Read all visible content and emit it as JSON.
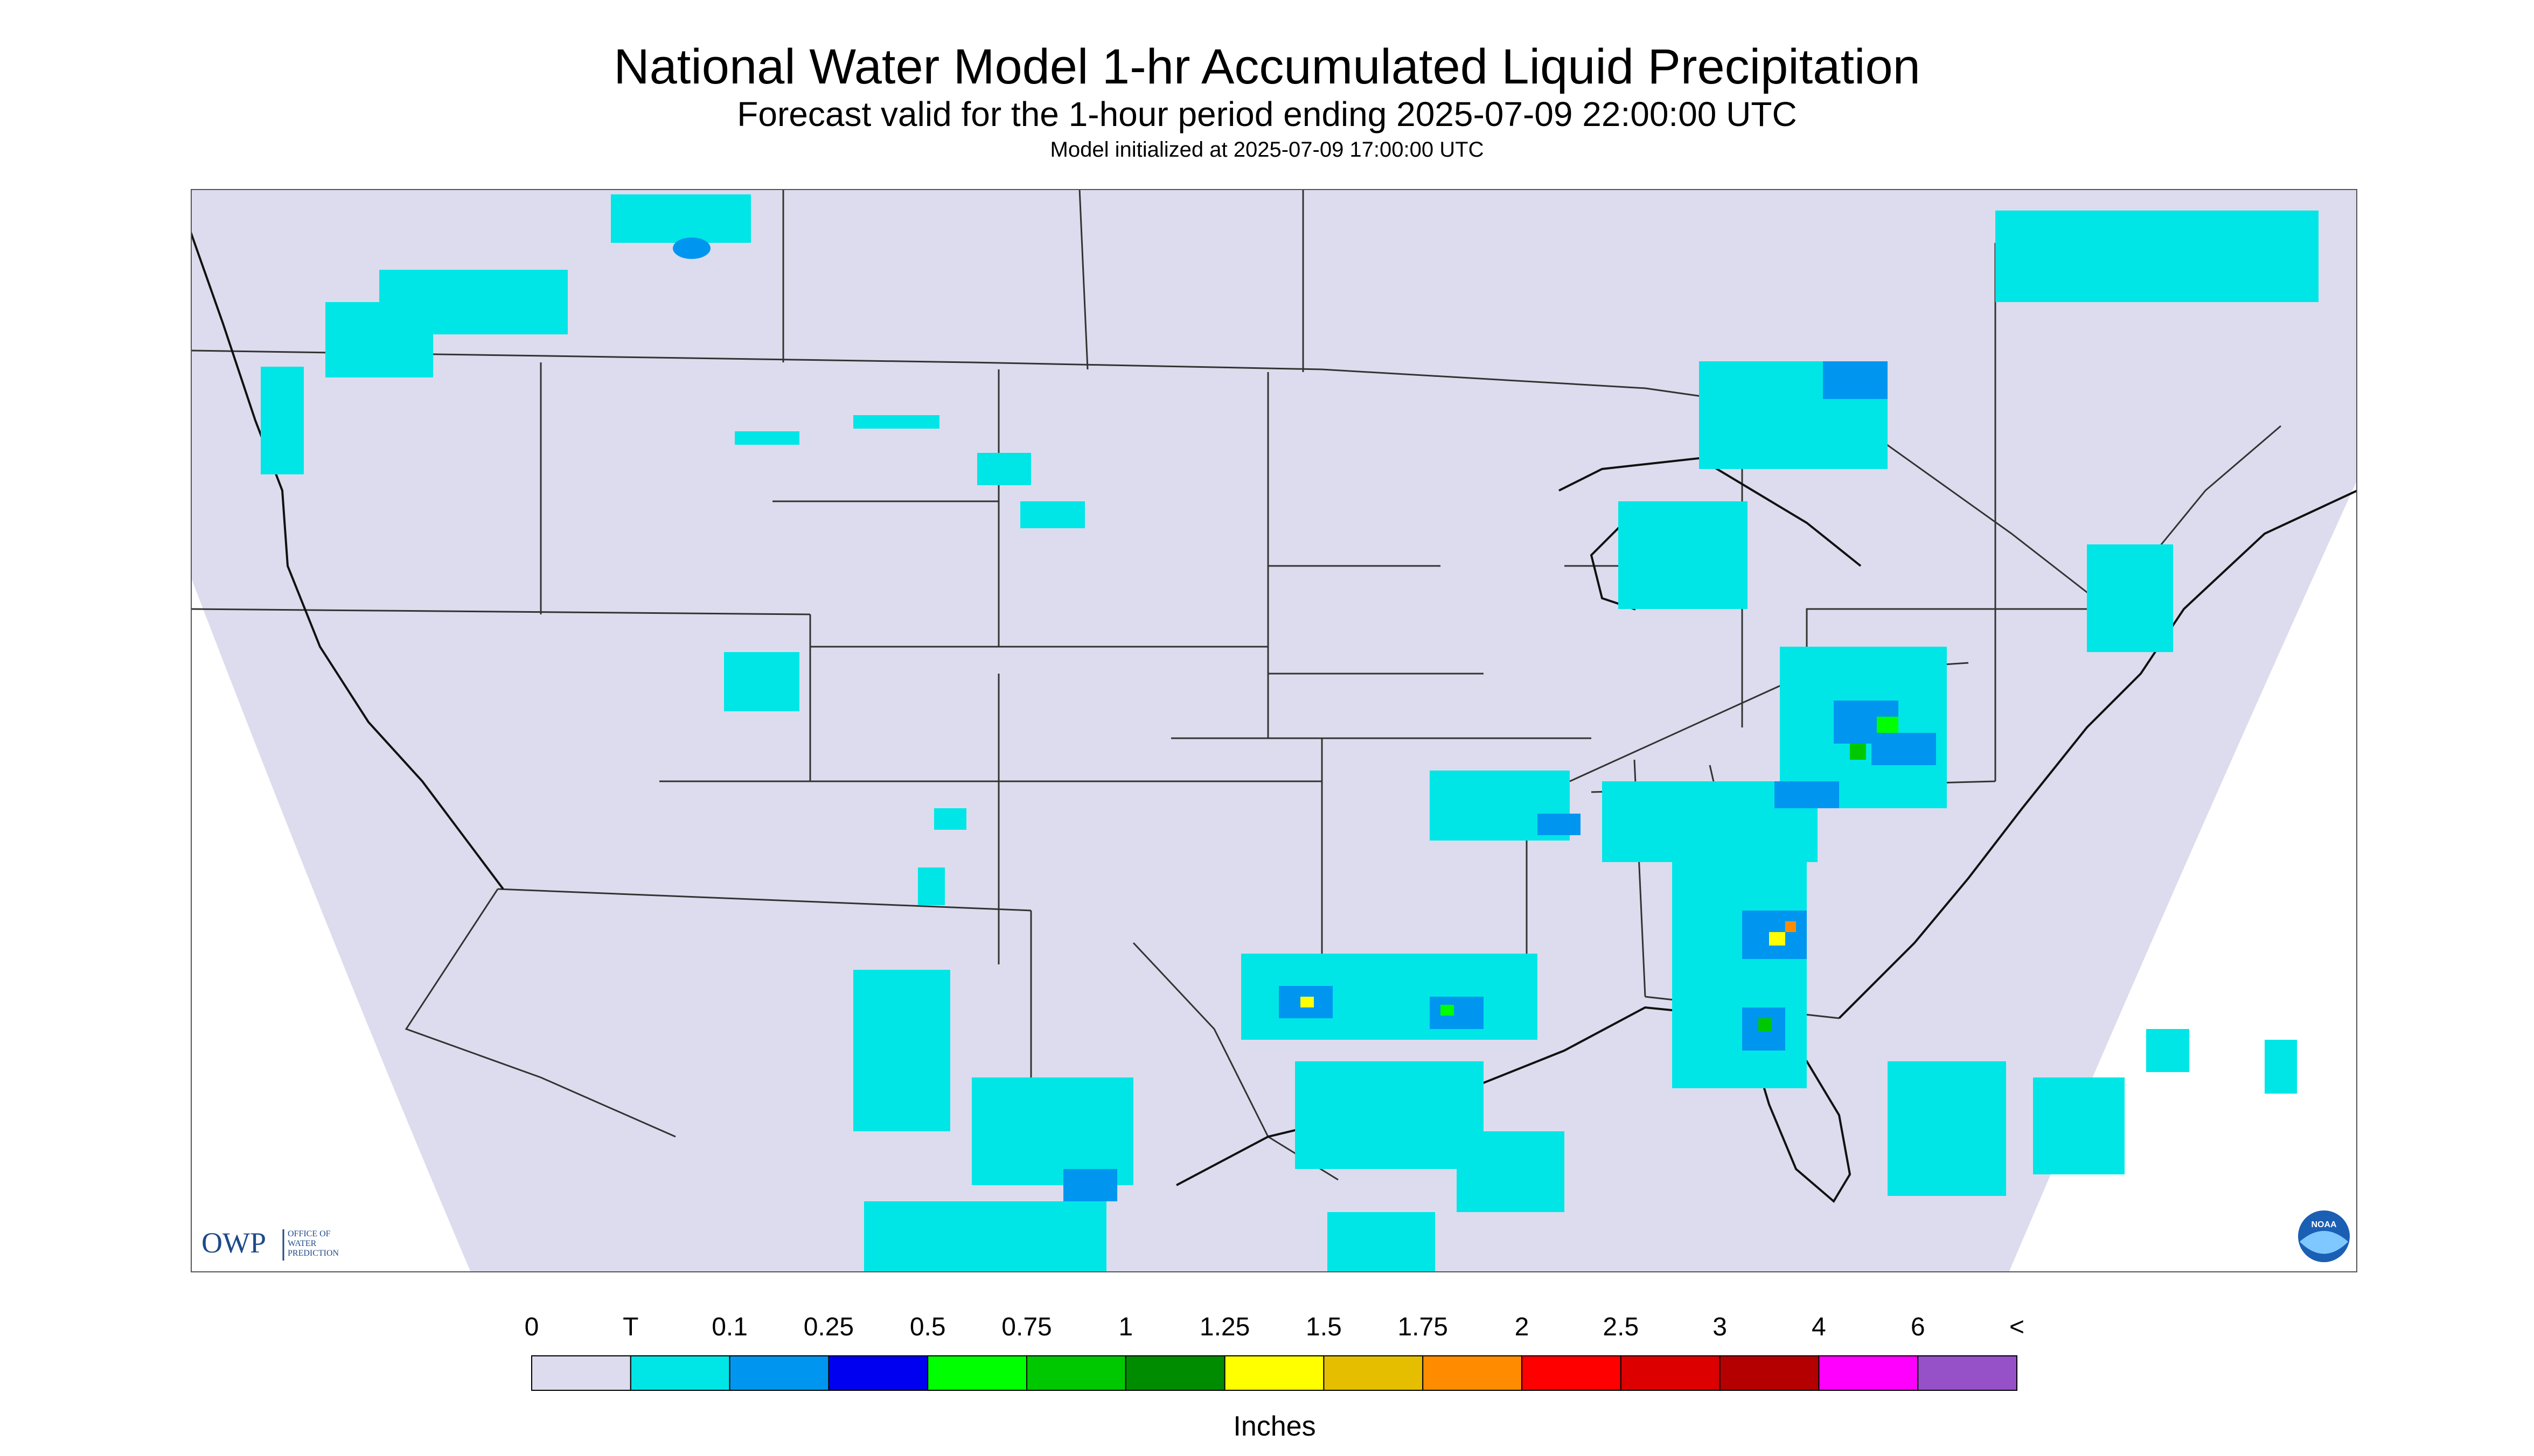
{
  "header": {
    "title": "National Water Model 1-hr Accumulated Liquid Precipitation",
    "subtitle": "Forecast valid for the 1-hour period ending 2025-07-09 22:00:00 UTC",
    "init": "Model initialized at 2025-07-09 17:00:00 UTC"
  },
  "logos": {
    "owp_mark": "OWP",
    "owp_text": [
      "OFFICE OF",
      "WATER",
      "PREDICTION"
    ],
    "noaa_text": "NOAA"
  },
  "legend": {
    "labels": [
      "0",
      "T",
      "0.1",
      "0.25",
      "0.5",
      "0.75",
      "1",
      "1.25",
      "1.5",
      "1.75",
      "2",
      "2.5",
      "3",
      "4",
      "6",
      "<"
    ],
    "colors": [
      "#dcdcee",
      "#00e6e6",
      "#0096f0",
      "#0000f0",
      "#00ff00",
      "#00c800",
      "#008c00",
      "#ffff00",
      "#e6be00",
      "#ff8c00",
      "#ff0000",
      "#dc0000",
      "#b40000",
      "#ff00ff",
      "#9650c8"
    ],
    "unit": "Inches"
  },
  "colors": {
    "map_background": "#dcdcee",
    "outside_domain": "#ffffff",
    "boundary": "#333333"
  }
}
